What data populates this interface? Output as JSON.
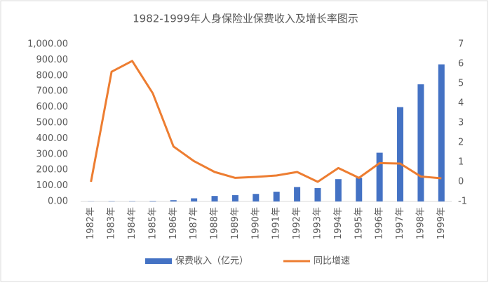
{
  "chart_data": {
    "type": "bar_line",
    "title": "1982-1999年人身保险业保费收入及增长率图示",
    "categories": [
      "1982年",
      "1983年",
      "1984年",
      "1985年",
      "1986年",
      "1987年",
      "1988年",
      "1989年",
      "1990年",
      "1991年",
      "1992年",
      "1993年",
      "1994年",
      "1995年",
      "1996年",
      "1997年",
      "1998年",
      "1999年"
    ],
    "series": [
      {
        "name": "保费收入（亿元）",
        "color": "#4472c4",
        "kind": "bar",
        "values": [
          1,
          2,
          2,
          3,
          8,
          20,
          35,
          40,
          48,
          62,
          92,
          85,
          142,
          150,
          310,
          600,
          745,
          872
        ]
      },
      {
        "name": "同比增速",
        "color": "#ed7d31",
        "kind": "line",
        "axis": "y2",
        "values": [
          0,
          5.6,
          6.15,
          4.5,
          1.8,
          1.05,
          0.5,
          0.2,
          0.25,
          0.32,
          0.5,
          0,
          0.7,
          0.2,
          0.95,
          0.93,
          0.27,
          0.18
        ]
      }
    ],
    "ylim": [
      0,
      1000
    ],
    "yticks": [
      {
        "value": 0,
        "label": "0.00"
      },
      {
        "value": 100,
        "label": "100.00"
      },
      {
        "value": 200,
        "label": "200.00"
      },
      {
        "value": 300,
        "label": "300.00"
      },
      {
        "value": 400,
        "label": "400.00"
      },
      {
        "value": 500,
        "label": "500.00"
      },
      {
        "value": 600,
        "label": "600.00"
      },
      {
        "value": 700,
        "label": "700.00"
      },
      {
        "value": 800,
        "label": "800.00"
      },
      {
        "value": 900,
        "label": "900.00"
      },
      {
        "value": 1000,
        "label": "1,000.00"
      }
    ],
    "y2lim": [
      -1,
      7
    ],
    "y2ticks": [
      -1,
      0,
      1,
      2,
      3,
      4,
      5,
      6,
      7
    ],
    "legend": "bottom"
  }
}
